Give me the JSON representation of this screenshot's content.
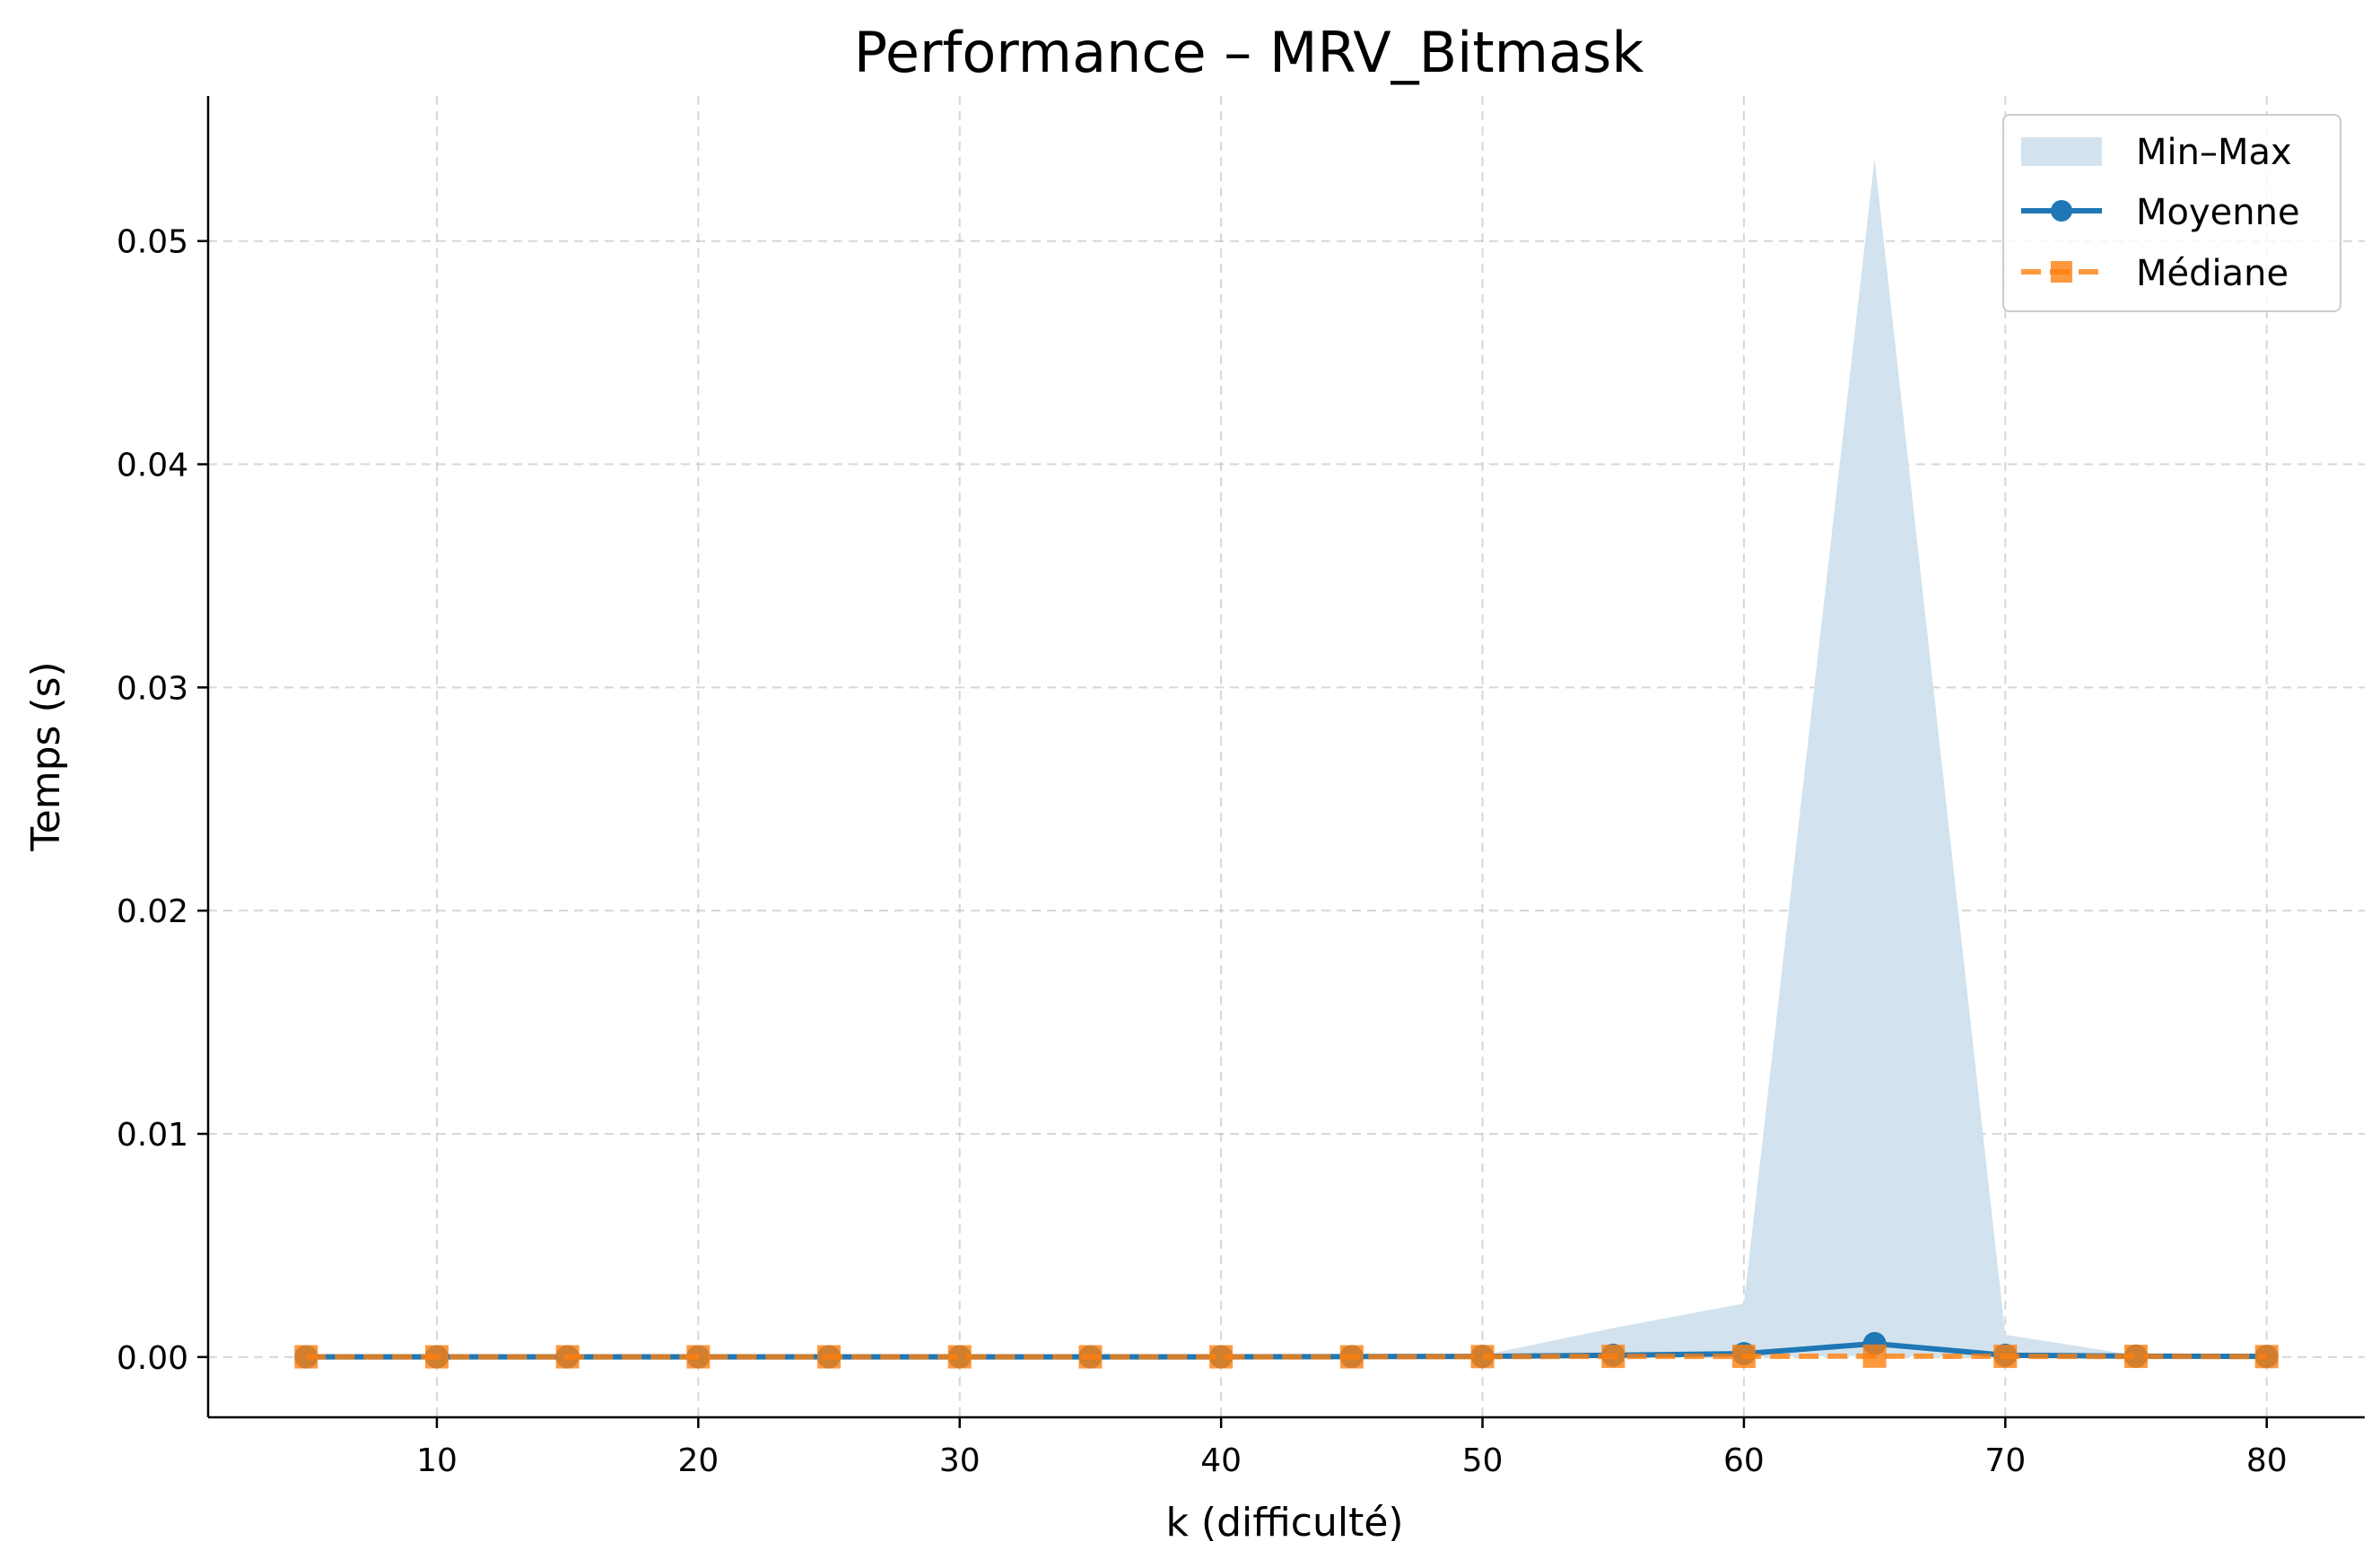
{
  "chart_data": {
    "type": "line",
    "title": "Performance – MRV_Bitmask",
    "xlabel": "k (difficulté)",
    "ylabel": "Temps (s)",
    "xlim": [
      1.25,
      83.75
    ],
    "ylim": [
      -0.0027,
      0.0565
    ],
    "xticks": [
      10,
      20,
      30,
      40,
      50,
      60,
      70,
      80
    ],
    "yticks": [
      0.0,
      0.01,
      0.02,
      0.03,
      0.04,
      0.05
    ],
    "ytick_labels": [
      "0.00",
      "0.01",
      "0.02",
      "0.03",
      "0.04",
      "0.05"
    ],
    "grid": true,
    "legend_position": "top-right",
    "x": [
      5,
      10,
      15,
      20,
      25,
      30,
      35,
      40,
      45,
      50,
      55,
      60,
      65,
      70,
      75,
      80
    ],
    "band": {
      "name": "Min–Max",
      "color": "#d2e3ef",
      "min": [
        0,
        0,
        0,
        0,
        0,
        0,
        0,
        0,
        0,
        0,
        2e-05,
        3e-05,
        4e-05,
        2e-05,
        2e-05,
        2e-05
      ],
      "max": [
        3e-05,
        3e-05,
        3e-05,
        3e-05,
        3e-05,
        4e-05,
        4e-05,
        5e-05,
        6e-05,
        8e-05,
        0.0013,
        0.0024,
        0.0537,
        0.001,
        8e-05,
        6e-05
      ]
    },
    "series": [
      {
        "name": "Moyenne",
        "color": "#1f77b4",
        "marker": "circle",
        "style": "solid",
        "values": [
          1e-05,
          1e-05,
          1e-05,
          1e-05,
          1e-05,
          1e-05,
          1e-05,
          1e-05,
          2e-05,
          3e-05,
          8e-05,
          0.00015,
          0.0006,
          8e-05,
          4e-05,
          3e-05
        ]
      },
      {
        "name": "Médiane",
        "color": "#ff7f0e",
        "marker": "square",
        "style": "dashed",
        "values": [
          1e-05,
          1e-05,
          1e-05,
          1e-05,
          1e-05,
          1e-05,
          1e-05,
          1e-05,
          1e-05,
          2e-05,
          3e-05,
          3e-05,
          4e-05,
          3e-05,
          3e-05,
          2e-05
        ]
      }
    ]
  }
}
